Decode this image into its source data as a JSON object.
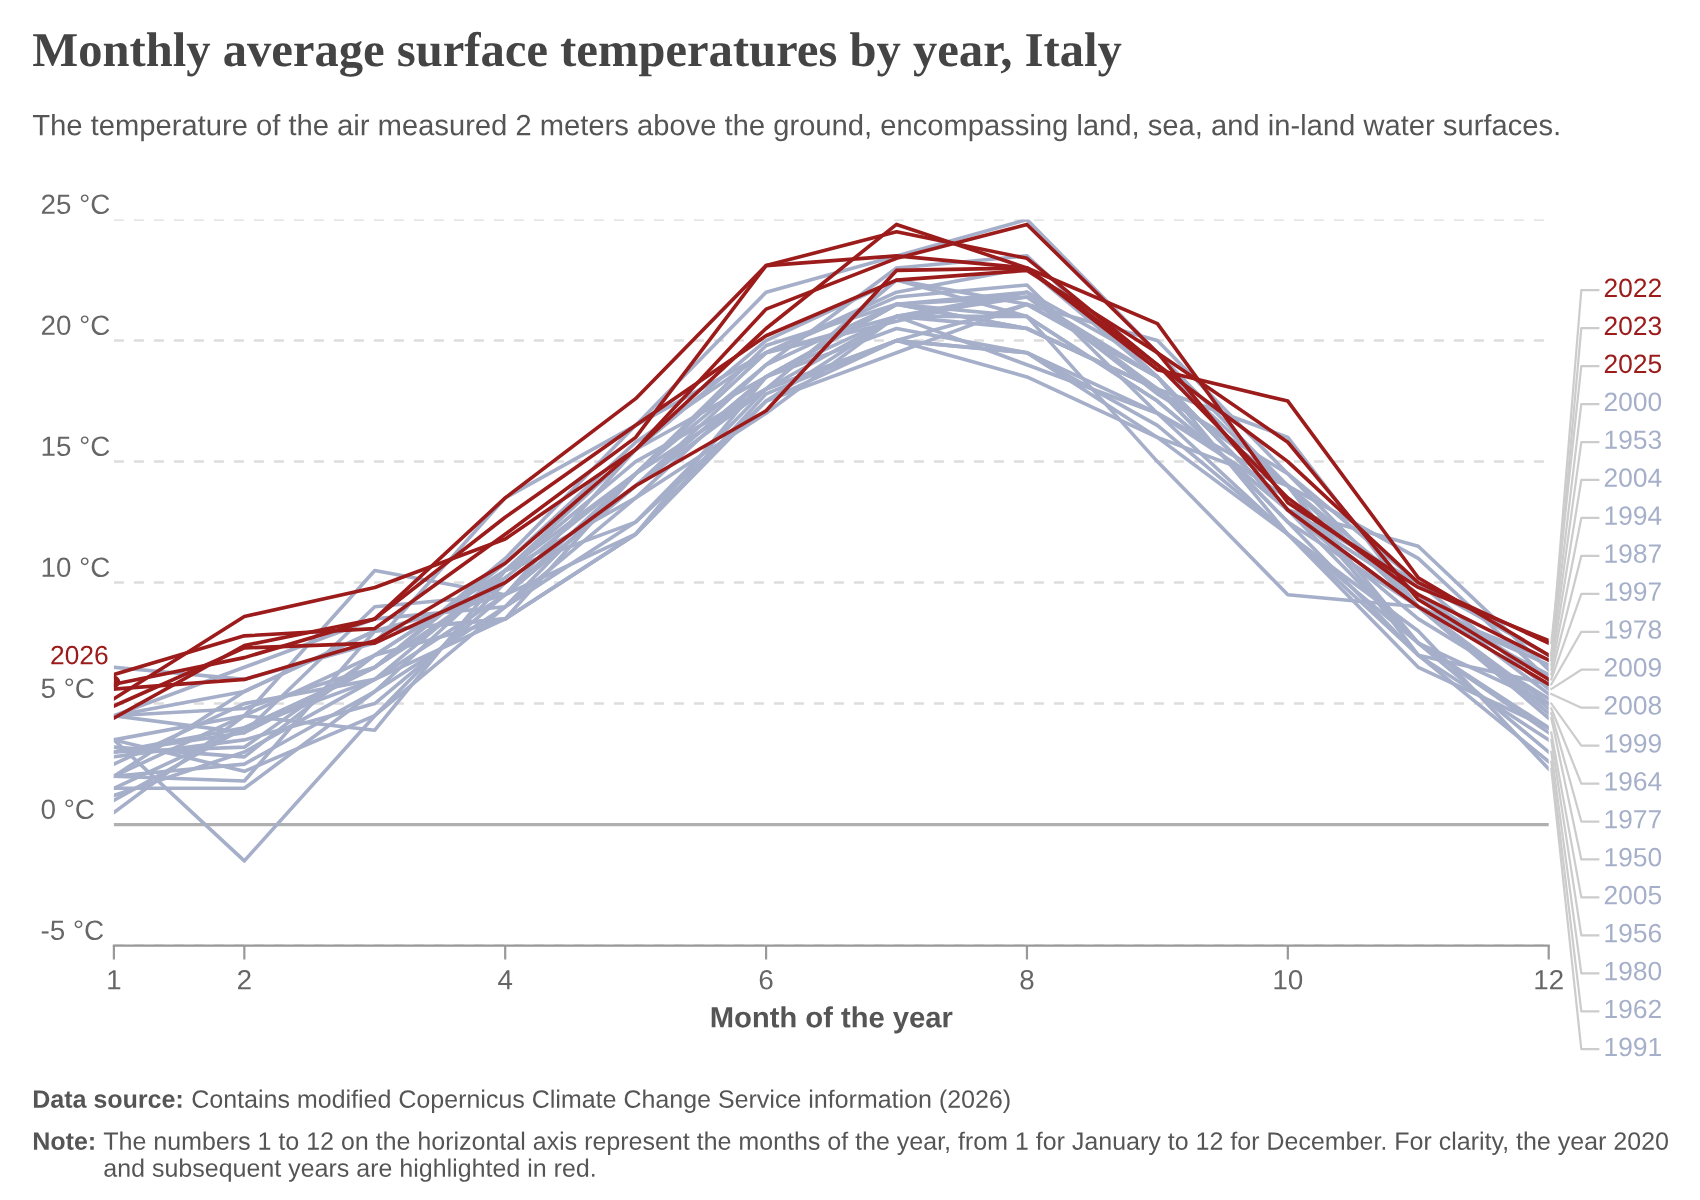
{
  "chart_data": {
    "type": "line",
    "title": "Monthly average surface temperatures by year, Italy",
    "subtitle": "The temperature of the air measured 2 meters above the ground, encompassing land, sea, and in-land water surfaces.",
    "xlabel": "Month of the year",
    "x": [
      1,
      2,
      3,
      4,
      5,
      6,
      7,
      8,
      9,
      10,
      11,
      12
    ],
    "xlim": [
      1,
      12
    ],
    "xticks": [
      1,
      2,
      4,
      6,
      8,
      10,
      12
    ],
    "ylim": [
      -5,
      25
    ],
    "yticks": [
      {
        "value": -5,
        "label": "-5 °C"
      },
      {
        "value": 0,
        "label": "0 °C"
      },
      {
        "value": 5,
        "label": "5 °C"
      },
      {
        "value": 10,
        "label": "10 °C"
      },
      {
        "value": 15,
        "label": "15 °C"
      },
      {
        "value": 20,
        "label": "20 °C"
      },
      {
        "value": 25,
        "label": "25 °C"
      }
    ],
    "grid": "y",
    "line_style": "solid",
    "ref_lines": [
      {
        "axis": "y",
        "value": 0,
        "color": "#b0b0b0"
      }
    ],
    "annotations": [
      "Data source: Contains modified Copernicus Climate Change Service information (2026)",
      "Note: The numbers 1 to 12 on the horizontal axis represent the months of the year, from 1 for January to 12 for December. For clarity, the year 2020 and subsequent years are highlighted in red."
    ],
    "series": [
      {
        "name": "2026",
        "color": "#9c1b1b",
        "marker": "circle",
        "values": [
          5.9,
          null,
          null,
          null,
          null,
          null,
          null,
          null,
          null,
          null,
          null,
          null
        ]
      },
      {
        "name": "2022",
        "color": "#9c1b1b",
        "values": [
          6.2,
          7.8,
          8.1,
          12.0,
          16.0,
          23.1,
          23.5,
          23.0,
          18.8,
          17.5,
          10.2,
          7.0
        ]
      },
      {
        "name": "2023",
        "color": "#9c1b1b",
        "values": [
          4.4,
          7.4,
          8.5,
          13.5,
          17.6,
          23.1,
          24.5,
          23.4,
          19.0,
          13.5,
          9.5,
          6.8
        ]
      },
      {
        "name": "2025",
        "color": "#9c1b1b",
        "values": [
          5.2,
          8.6,
          9.8,
          11.8,
          15.5,
          20.5,
          24.8,
          23.0,
          19.0,
          15.0,
          10.0,
          7.5
        ]
      },
      {
        "name": "2000",
        "color": "#a6afc9",
        "values": [
          1.5,
          4.0,
          6.5,
          10.8,
          15.8,
          19.5,
          20.8,
          22.0,
          17.8,
          14.5,
          10.0,
          7.0
        ]
      },
      {
        "name": "1953",
        "color": "#a6afc9",
        "values": [
          2.0,
          2.5,
          5.5,
          10.5,
          13.5,
          18.5,
          21.5,
          20.5,
          18.0,
          14.0,
          9.0,
          6.8
        ]
      },
      {
        "name": "2004",
        "color": "#a6afc9",
        "values": [
          2.8,
          3.5,
          5.0,
          9.5,
          12.0,
          18.5,
          21.5,
          21.8,
          18.0,
          16.0,
          9.0,
          6.6
        ]
      },
      {
        "name": "1994",
        "color": "#a6afc9",
        "values": [
          4.5,
          3.8,
          9.0,
          9.5,
          14.5,
          19.0,
          23.0,
          23.5,
          18.5,
          13.0,
          11.5,
          6.4
        ]
      },
      {
        "name": "1987",
        "color": "#a6afc9",
        "values": [
          2.0,
          4.5,
          3.9,
          10.5,
          12.5,
          18.0,
          22.5,
          21.5,
          20.0,
          14.5,
          9.0,
          6.2
        ]
      },
      {
        "name": "1997",
        "color": "#a6afc9",
        "values": [
          4.5,
          5.5,
          8.0,
          8.5,
          14.5,
          18.0,
          20.0,
          21.5,
          18.5,
          13.0,
          9.5,
          6.0
        ]
      },
      {
        "name": "1978",
        "color": "#a6afc9",
        "values": [
          3.0,
          3.2,
          7.0,
          8.5,
          12.0,
          17.8,
          20.0,
          19.5,
          17.0,
          12.0,
          7.0,
          5.8
        ]
      },
      {
        "name": "2009",
        "color": "#a6afc9",
        "values": [
          3.0,
          3.8,
          6.5,
          11.0,
          16.5,
          19.5,
          22.0,
          23.0,
          18.5,
          13.0,
          10.0,
          5.6
        ]
      },
      {
        "name": "2008",
        "color": "#a6afc9",
        "values": [
          4.5,
          4.8,
          6.5,
          10.2,
          14.5,
          19.5,
          21.8,
          22.3,
          17.0,
          14.0,
          9.5,
          5.4
        ]
      },
      {
        "name": "1999",
        "color": "#a6afc9",
        "values": [
          3.2,
          2.8,
          7.0,
          10.5,
          15.5,
          18.5,
          21.5,
          22.0,
          19.0,
          14.0,
          7.5,
          5.0
        ]
      },
      {
        "name": "1964",
        "color": "#a6afc9",
        "values": [
          1.0,
          4.0,
          6.0,
          10.5,
          14.5,
          19.8,
          21.5,
          20.5,
          18.0,
          12.5,
          9.0,
          4.8
        ]
      },
      {
        "name": "1977",
        "color": "#a6afc9",
        "values": [
          4.5,
          6.5,
          8.5,
          9.0,
          12.5,
          17.5,
          20.0,
          19.5,
          16.0,
          14.0,
          9.0,
          4.6
        ]
      },
      {
        "name": "1950",
        "color": "#a6afc9",
        "values": [
          2.0,
          5.5,
          8.0,
          9.5,
          15.5,
          20.0,
          22.5,
          21.0,
          17.5,
          13.0,
          9.0,
          4.4
        ]
      },
      {
        "name": "2005",
        "color": "#a6afc9",
        "values": [
          1.5,
          1.5,
          5.5,
          9.0,
          14.5,
          19.5,
          21.0,
          19.0,
          17.0,
          13.5,
          7.5,
          3.8
        ]
      },
      {
        "name": "1956",
        "color": "#a6afc9",
        "values": [
          3.5,
          -1.5,
          4.5,
          9.0,
          13.5,
          17.0,
          21.0,
          20.5,
          18.0,
          12.5,
          7.0,
          3.5
        ]
      },
      {
        "name": "1980",
        "color": "#a6afc9",
        "values": [
          2.5,
          5.0,
          6.0,
          8.5,
          12.0,
          17.5,
          19.5,
          21.5,
          18.5,
          13.0,
          7.5,
          3.0
        ]
      },
      {
        "name": "1962",
        "color": "#a6afc9",
        "values": [
          3.5,
          2.2,
          4.5,
          10.0,
          14.0,
          18.0,
          21.0,
          22.0,
          18.0,
          14.0,
          7.0,
          2.6
        ]
      },
      {
        "name": "1991",
        "color": "#a6afc9",
        "values": [
          2.0,
          1.8,
          8.0,
          8.5,
          12.0,
          17.5,
          21.0,
          21.8,
          18.5,
          12.0,
          8.0,
          2.3
        ]
      },
      {
        "color": "#a6afc9",
        "values": [
          0.5,
          4.5,
          10.5,
          9.5,
          14.0,
          18.5,
          20.5,
          19.5,
          16.5,
          12.0,
          7.5,
          4.0
        ]
      },
      {
        "color": "#a6afc9",
        "values": [
          3.0,
          4.0,
          6.5,
          10.0,
          14.0,
          19.0,
          21.5,
          21.0,
          15.0,
          9.5,
          9.0,
          5.0
        ]
      },
      {
        "color": "#a6afc9",
        "values": [
          6.5,
          6.0,
          7.5,
          13.5,
          16.5,
          22.0,
          23.5,
          25.0,
          19.5,
          14.0,
          11.0,
          6.0
        ]
      },
      {
        "color": "#a6afc9",
        "values": [
          3.5,
          4.5,
          7.0,
          10.5,
          15.0,
          18.0,
          20.0,
          18.5,
          16.0,
          12.0,
          6.5,
          4.0
        ]
      },
      {
        "color": "#a6afc9",
        "values": [
          1.2,
          3.0,
          6.0,
          9.5,
          14.0,
          18.5,
          21.0,
          21.0,
          17.5,
          13.0,
          8.5,
          5.2
        ]
      },
      {
        "color": "#9c1b1b",
        "values": [
          5.6,
          6.0,
          7.6,
          10.8,
          15.5,
          21.3,
          23.4,
          24.8,
          19.5,
          15.8,
          9.3,
          6.0
        ]
      },
      {
        "color": "#9c1b1b",
        "values": [
          4.9,
          7.3,
          7.5,
          10.0,
          14.0,
          17.1,
          22.9,
          23.0,
          20.7,
          13.3,
          9.8,
          7.6
        ]
      },
      {
        "color": "#9c1b1b",
        "values": [
          5.8,
          6.9,
          8.5,
          12.7,
          16.5,
          20.2,
          22.5,
          22.9,
          19.5,
          13.0,
          9.0,
          5.8
        ]
      }
    ]
  }
}
